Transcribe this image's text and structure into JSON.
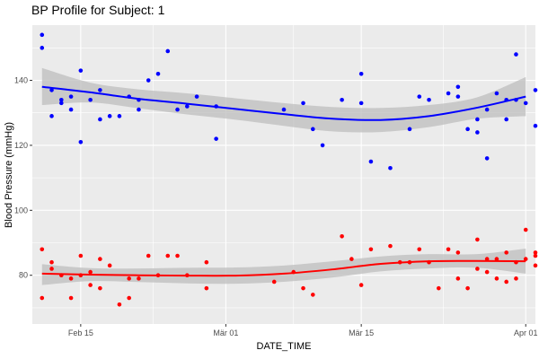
{
  "chart_data": {
    "type": "scatter",
    "title": "BP Profile for Subject: 1",
    "xlabel": "DATE_TIME",
    "ylabel": "Blood Pressure (mmHg)",
    "x_domain": [
      "2024-02-10",
      "2024-04-02"
    ],
    "ylim": [
      65,
      157
    ],
    "grid": true,
    "legend": "none",
    "x_ticks": [
      {
        "date": "2024-02-15",
        "label": "Feb 15"
      },
      {
        "date": "2024-03-01",
        "label": "Mär 01"
      },
      {
        "date": "2024-03-15",
        "label": "Mär 15"
      },
      {
        "date": "2024-04-01",
        "label": "Apr 01"
      }
    ],
    "y_ticks": [
      80,
      100,
      120,
      140
    ],
    "colors": {
      "panel": "#ebebeb",
      "grid": "#ffffff",
      "systolic": "#0000ff",
      "diastolic": "#ff0000",
      "band": "#bebebe"
    },
    "series": [
      {
        "role": "systolic",
        "points": [
          [
            "2024-02-11",
            154
          ],
          [
            "2024-02-11",
            150
          ],
          [
            "2024-02-12",
            137
          ],
          [
            "2024-02-12",
            129
          ],
          [
            "2024-02-13",
            133
          ],
          [
            "2024-02-13",
            134
          ],
          [
            "2024-02-14",
            131
          ],
          [
            "2024-02-14",
            135
          ],
          [
            "2024-02-15",
            121
          ],
          [
            "2024-02-15",
            143
          ],
          [
            "2024-02-16",
            134
          ],
          [
            "2024-02-17",
            137
          ],
          [
            "2024-02-17",
            128
          ],
          [
            "2024-02-18",
            129
          ],
          [
            "2024-02-19",
            129
          ],
          [
            "2024-02-20",
            135
          ],
          [
            "2024-02-21",
            131
          ],
          [
            "2024-02-21",
            134
          ],
          [
            "2024-02-22",
            140
          ],
          [
            "2024-02-23",
            142
          ],
          [
            "2024-02-24",
            149
          ],
          [
            "2024-02-25",
            131
          ],
          [
            "2024-02-26",
            132
          ],
          [
            "2024-02-27",
            135
          ],
          [
            "2024-02-29",
            132
          ],
          [
            "2024-02-29",
            122
          ],
          [
            "2024-03-07",
            131
          ],
          [
            "2024-03-09",
            133
          ],
          [
            "2024-03-10",
            125
          ],
          [
            "2024-03-11",
            120
          ],
          [
            "2024-03-13",
            134
          ],
          [
            "2024-03-15",
            133
          ],
          [
            "2024-03-15",
            142
          ],
          [
            "2024-03-16",
            115
          ],
          [
            "2024-03-18",
            113
          ],
          [
            "2024-03-20",
            125
          ],
          [
            "2024-03-21",
            135
          ],
          [
            "2024-03-22",
            134
          ],
          [
            "2024-03-24",
            136
          ],
          [
            "2024-03-25",
            135
          ],
          [
            "2024-03-25",
            138
          ],
          [
            "2024-03-26",
            125
          ],
          [
            "2024-03-27",
            128
          ],
          [
            "2024-03-27",
            124
          ],
          [
            "2024-03-28",
            116
          ],
          [
            "2024-03-28",
            131
          ],
          [
            "2024-03-29",
            136
          ],
          [
            "2024-03-30",
            128
          ],
          [
            "2024-03-30",
            134
          ],
          [
            "2024-03-31",
            134
          ],
          [
            "2024-03-31",
            148
          ],
          [
            "2024-04-01",
            133
          ],
          [
            "2024-04-02",
            126
          ],
          [
            "2024-04-02",
            137
          ]
        ],
        "trend": [
          [
            "2024-02-11",
            138
          ],
          [
            "2024-02-16",
            136.3
          ],
          [
            "2024-02-21",
            134.3
          ],
          [
            "2024-02-26",
            132.8
          ],
          [
            "2024-03-02",
            131.2
          ],
          [
            "2024-03-07",
            129.6
          ],
          [
            "2024-03-12",
            128.2
          ],
          [
            "2024-03-17",
            127.8
          ],
          [
            "2024-03-22",
            129
          ],
          [
            "2024-03-27",
            131.6
          ],
          [
            "2024-04-01",
            135
          ]
        ],
        "band_upper": [
          [
            "2024-02-11",
            143.8
          ],
          [
            "2024-02-16",
            139.3
          ],
          [
            "2024-02-21",
            137.2
          ],
          [
            "2024-02-26",
            136
          ],
          [
            "2024-03-02",
            134.5
          ],
          [
            "2024-03-07",
            133
          ],
          [
            "2024-03-12",
            131.8
          ],
          [
            "2024-03-17",
            131.5
          ],
          [
            "2024-03-22",
            132.4
          ],
          [
            "2024-03-27",
            134.8
          ],
          [
            "2024-04-01",
            141
          ]
        ],
        "band_lower": [
          [
            "2024-02-11",
            132.4
          ],
          [
            "2024-02-16",
            133.2
          ],
          [
            "2024-02-21",
            131.4
          ],
          [
            "2024-02-26",
            129.5
          ],
          [
            "2024-03-02",
            127.9
          ],
          [
            "2024-03-07",
            126
          ],
          [
            "2024-03-12",
            124.3
          ],
          [
            "2024-03-17",
            124.1
          ],
          [
            "2024-03-22",
            125.6
          ],
          [
            "2024-03-27",
            128.2
          ],
          [
            "2024-04-01",
            129
          ]
        ]
      },
      {
        "role": "diastolic",
        "points": [
          [
            "2024-02-11",
            73
          ],
          [
            "2024-02-11",
            88
          ],
          [
            "2024-02-12",
            82
          ],
          [
            "2024-02-12",
            84
          ],
          [
            "2024-02-13",
            80
          ],
          [
            "2024-02-14",
            79
          ],
          [
            "2024-02-14",
            73
          ],
          [
            "2024-02-15",
            80
          ],
          [
            "2024-02-15",
            86
          ],
          [
            "2024-02-16",
            81
          ],
          [
            "2024-02-16",
            77
          ],
          [
            "2024-02-17",
            85
          ],
          [
            "2024-02-17",
            76
          ],
          [
            "2024-02-18",
            83
          ],
          [
            "2024-02-19",
            71
          ],
          [
            "2024-02-20",
            79
          ],
          [
            "2024-02-20",
            73
          ],
          [
            "2024-02-21",
            79
          ],
          [
            "2024-02-22",
            86
          ],
          [
            "2024-02-23",
            80
          ],
          [
            "2024-02-24",
            86
          ],
          [
            "2024-02-25",
            86
          ],
          [
            "2024-02-26",
            80
          ],
          [
            "2024-02-28",
            84
          ],
          [
            "2024-02-28",
            76
          ],
          [
            "2024-03-06",
            78
          ],
          [
            "2024-03-08",
            81
          ],
          [
            "2024-03-09",
            76
          ],
          [
            "2024-03-10",
            74
          ],
          [
            "2024-03-13",
            92
          ],
          [
            "2024-03-14",
            85
          ],
          [
            "2024-03-15",
            77
          ],
          [
            "2024-03-16",
            88
          ],
          [
            "2024-03-18",
            89
          ],
          [
            "2024-03-19",
            84
          ],
          [
            "2024-03-20",
            84
          ],
          [
            "2024-03-21",
            88
          ],
          [
            "2024-03-22",
            84
          ],
          [
            "2024-03-23",
            76
          ],
          [
            "2024-03-24",
            88
          ],
          [
            "2024-03-25",
            87
          ],
          [
            "2024-03-25",
            79
          ],
          [
            "2024-03-26",
            76
          ],
          [
            "2024-03-27",
            82
          ],
          [
            "2024-03-27",
            91
          ],
          [
            "2024-03-28",
            81
          ],
          [
            "2024-03-28",
            85
          ],
          [
            "2024-03-29",
            85
          ],
          [
            "2024-03-29",
            79
          ],
          [
            "2024-03-30",
            87
          ],
          [
            "2024-03-30",
            78
          ],
          [
            "2024-03-31",
            84
          ],
          [
            "2024-03-31",
            79
          ],
          [
            "2024-04-01",
            94
          ],
          [
            "2024-04-01",
            85
          ],
          [
            "2024-04-02",
            87
          ],
          [
            "2024-04-02",
            86
          ],
          [
            "2024-04-02",
            83
          ]
        ],
        "trend": [
          [
            "2024-02-11",
            80.5
          ],
          [
            "2024-02-16",
            80.2
          ],
          [
            "2024-02-21",
            80
          ],
          [
            "2024-02-26",
            79.9
          ],
          [
            "2024-03-02",
            79.9
          ],
          [
            "2024-03-07",
            80.5
          ],
          [
            "2024-03-12",
            81.8
          ],
          [
            "2024-03-17",
            83.5
          ],
          [
            "2024-03-22",
            84.3
          ],
          [
            "2024-03-27",
            84.4
          ],
          [
            "2024-04-01",
            84.3
          ]
        ],
        "band_upper": [
          [
            "2024-02-11",
            83.4
          ],
          [
            "2024-02-16",
            82.2
          ],
          [
            "2024-02-21",
            82.1
          ],
          [
            "2024-02-26",
            82.3
          ],
          [
            "2024-03-02",
            82.4
          ],
          [
            "2024-03-07",
            83
          ],
          [
            "2024-03-12",
            84.3
          ],
          [
            "2024-03-17",
            85.8
          ],
          [
            "2024-03-22",
            86.5
          ],
          [
            "2024-03-27",
            86.5
          ],
          [
            "2024-04-01",
            88.2
          ]
        ],
        "band_lower": [
          [
            "2024-02-11",
            77
          ],
          [
            "2024-02-16",
            78.2
          ],
          [
            "2024-02-21",
            77.9
          ],
          [
            "2024-02-26",
            77.5
          ],
          [
            "2024-03-02",
            77.4
          ],
          [
            "2024-03-07",
            78
          ],
          [
            "2024-03-12",
            79.3
          ],
          [
            "2024-03-17",
            81.2
          ],
          [
            "2024-03-22",
            82.1
          ],
          [
            "2024-03-27",
            82.3
          ],
          [
            "2024-04-01",
            80.5
          ]
        ]
      }
    ]
  }
}
